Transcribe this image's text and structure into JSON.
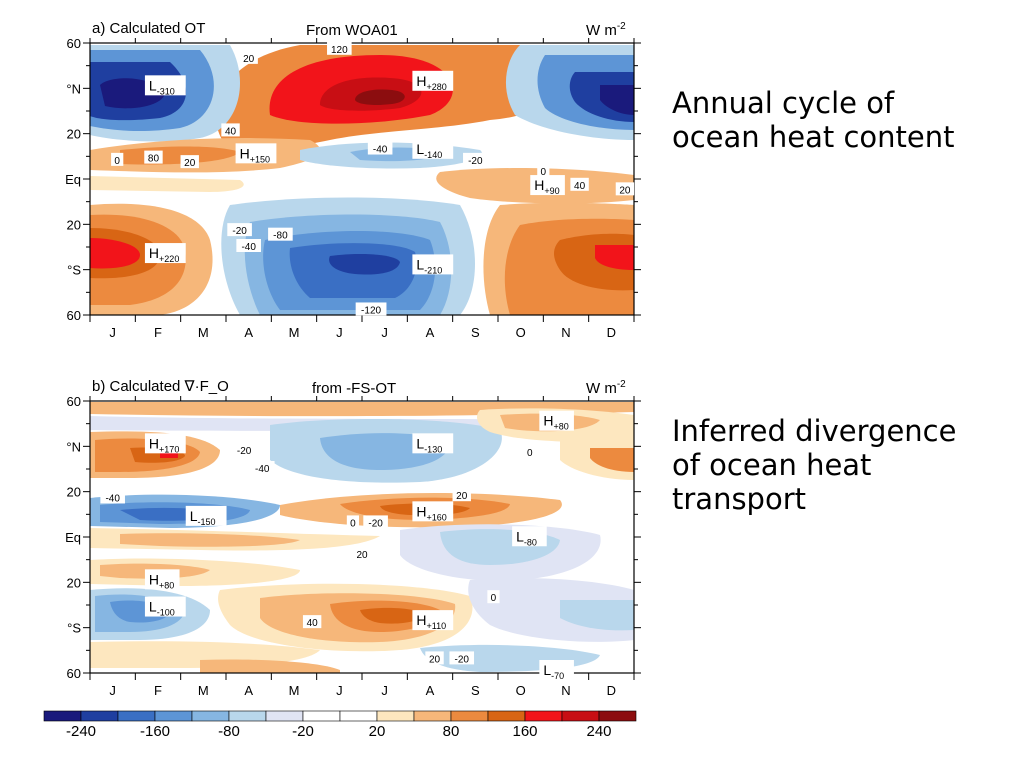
{
  "colorbar": {
    "colors": [
      "#1a1a7c",
      "#1f3fa0",
      "#3a6fc4",
      "#5d95d6",
      "#86b6e2",
      "#b9d7ec",
      "#e0e4f4",
      "#ffffff",
      "#ffffff",
      "#fde7bf",
      "#f6b77a",
      "#ec8a3f",
      "#d86514",
      "#f2141a",
      "#c80e14",
      "#8c0d0f"
    ],
    "labels": [
      "-240",
      "-160",
      "-80",
      "-20",
      "20",
      "80",
      "160",
      "240"
    ]
  },
  "captions": {
    "a": [
      "Annual cycle of",
      "ocean heat content"
    ],
    "b": [
      "Inferred divergence",
      "of ocean heat",
      "transport"
    ]
  },
  "chart_data": [
    {
      "type": "heatmap",
      "title": "a) Calculated OT",
      "source": "From WOA01",
      "units": "W m-2",
      "x_ticks": [
        "J",
        "F",
        "M",
        "A",
        "M",
        "J",
        "J",
        "A",
        "S",
        "O",
        "N",
        "D"
      ],
      "y_ticks": [
        "60",
        "°N",
        "20",
        "Eq",
        "20",
        "°S",
        "60"
      ],
      "annotations": [
        {
          "text": "H+280",
          "month": 7.2,
          "lat": 42
        },
        {
          "text": "L-310",
          "month": 1.3,
          "lat": 40
        },
        {
          "text": "H+150",
          "month": 3.3,
          "lat": 10
        },
        {
          "text": "L-140",
          "month": 7.2,
          "lat": 12
        },
        {
          "text": "H+90",
          "month": 9.8,
          "lat": -4
        },
        {
          "text": "H+220",
          "month": 1.3,
          "lat": -34
        },
        {
          "text": "L-210",
          "month": 7.2,
          "lat": -39
        },
        {
          "text": "120",
          "month": 5.5,
          "lat": 57
        },
        {
          "text": "20",
          "month": 3.5,
          "lat": 53
        },
        {
          "text": "40",
          "month": 3.1,
          "lat": 21
        },
        {
          "text": "0",
          "month": 0.6,
          "lat": 8
        },
        {
          "text": "80",
          "month": 1.4,
          "lat": 9
        },
        {
          "text": "20",
          "month": 2.2,
          "lat": 7
        },
        {
          "text": "-40",
          "month": 6.4,
          "lat": 13
        },
        {
          "text": "-20",
          "month": 8.5,
          "lat": 8
        },
        {
          "text": "0",
          "month": 10.0,
          "lat": 3
        },
        {
          "text": "40",
          "month": 10.8,
          "lat": -3
        },
        {
          "text": "20",
          "month": 11.8,
          "lat": -5
        },
        {
          "text": "-20",
          "month": 3.3,
          "lat": -23
        },
        {
          "text": "-80",
          "month": 4.2,
          "lat": -25
        },
        {
          "text": "-40",
          "month": 3.5,
          "lat": -30
        },
        {
          "text": "-120",
          "month": 6.2,
          "lat": -58
        }
      ]
    },
    {
      "type": "heatmap",
      "title": "b) Calculated ∇·F_O",
      "source": "from -FS-OT",
      "units": "W m-2",
      "x_ticks": [
        "J",
        "F",
        "M",
        "A",
        "M",
        "J",
        "J",
        "A",
        "S",
        "O",
        "N",
        "D"
      ],
      "y_ticks": [
        "60",
        "°N",
        "20",
        "Eq",
        "20",
        "°S",
        "60"
      ],
      "annotations": [
        {
          "text": "H+170",
          "month": 1.3,
          "lat": 40
        },
        {
          "text": "L-130",
          "month": 7.2,
          "lat": 40
        },
        {
          "text": "H+80",
          "month": 10.0,
          "lat": 50
        },
        {
          "text": "L-150",
          "month": 2.2,
          "lat": 8
        },
        {
          "text": "H+160",
          "month": 7.2,
          "lat": 10
        },
        {
          "text": "L-80",
          "month": 9.4,
          "lat": -1
        },
        {
          "text": "H+80",
          "month": 1.3,
          "lat": -20
        },
        {
          "text": "L-100",
          "month": 1.3,
          "lat": -32
        },
        {
          "text": "H+110",
          "month": 7.2,
          "lat": -38
        },
        {
          "text": "L-70",
          "month": 10.0,
          "lat": -60
        },
        {
          "text": "-20",
          "month": 3.4,
          "lat": 38
        },
        {
          "text": "-40",
          "month": 3.8,
          "lat": 30
        },
        {
          "text": "0",
          "month": 9.7,
          "lat": 37
        },
        {
          "text": "-40",
          "month": 0.5,
          "lat": 17
        },
        {
          "text": "20",
          "month": 8.2,
          "lat": 18
        },
        {
          "text": "0",
          "month": 5.8,
          "lat": 6
        },
        {
          "text": "-20",
          "month": 6.3,
          "lat": 6
        },
        {
          "text": "20",
          "month": 6.0,
          "lat": -8
        },
        {
          "text": "0",
          "month": 8.9,
          "lat": -27
        },
        {
          "text": "40",
          "month": 4.9,
          "lat": -38
        },
        {
          "text": "20",
          "month": 7.6,
          "lat": -54
        },
        {
          "text": "-20",
          "month": 8.2,
          "lat": -54
        }
      ]
    }
  ]
}
